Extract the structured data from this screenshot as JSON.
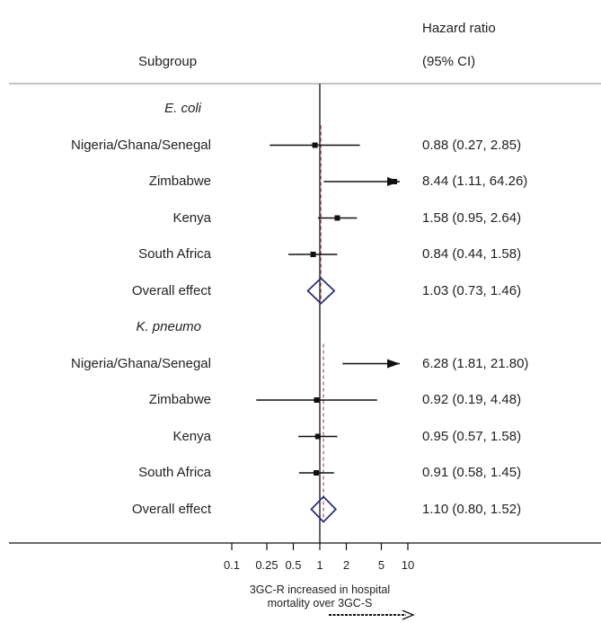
{
  "header": {
    "subgroup": "Subgroup",
    "hazard_ratio": "Hazard ratio",
    "ci": "(95% CI)"
  },
  "footer": {
    "direction_line1": "3GC-R increased in hospital",
    "direction_line2": "mortality over 3GC-S"
  },
  "colors": {
    "diamond": "#2b2f7a",
    "reference_line": "#a03040",
    "ci_line": "#111111"
  },
  "chart_data": {
    "type": "forest",
    "xscale": "log",
    "xlim": [
      0.1,
      10
    ],
    "xticks": [
      "0.1",
      "0.25",
      "0.5",
      "1",
      "2",
      "5",
      "10"
    ],
    "reference_line": 1,
    "rows": [
      {
        "kind": "group",
        "label": "E. coli"
      },
      {
        "kind": "study",
        "label": "Nigeria/Ghana/Senegal",
        "hr": 0.88,
        "lo": 0.27,
        "hi": 2.85,
        "text": "0.88 (0.27, 2.85)"
      },
      {
        "kind": "study",
        "label": "Zimbabwe",
        "hr": 8.44,
        "lo": 1.11,
        "hi": 64.26,
        "text": "8.44 (1.11, 64.26)"
      },
      {
        "kind": "study",
        "label": "Kenya",
        "hr": 1.58,
        "lo": 0.95,
        "hi": 2.64,
        "text": "1.58 (0.95, 2.64)"
      },
      {
        "kind": "study",
        "label": "South Africa",
        "hr": 0.84,
        "lo": 0.44,
        "hi": 1.58,
        "text": "0.84 (0.44, 1.58)"
      },
      {
        "kind": "overall",
        "label": "Overall effect",
        "hr": 1.03,
        "lo": 0.73,
        "hi": 1.46,
        "text": "1.03 (0.73, 1.46)"
      },
      {
        "kind": "group",
        "label": "K. pneumo"
      },
      {
        "kind": "study",
        "label": "Nigeria/Ghana/Senegal",
        "hr": 6.28,
        "lo": 1.81,
        "hi": 21.8,
        "text": "6.28 (1.81, 21.80)"
      },
      {
        "kind": "study",
        "label": "Zimbabwe",
        "hr": 0.92,
        "lo": 0.19,
        "hi": 4.48,
        "text": "0.92 (0.19, 4.48)"
      },
      {
        "kind": "study",
        "label": "Kenya",
        "hr": 0.95,
        "lo": 0.57,
        "hi": 1.58,
        "text": "0.95 (0.57, 1.58)"
      },
      {
        "kind": "study",
        "label": "South Africa",
        "hr": 0.91,
        "lo": 0.58,
        "hi": 1.45,
        "text": "0.91 (0.58, 1.45)"
      },
      {
        "kind": "overall",
        "label": "Overall effect",
        "hr": 1.1,
        "lo": 0.8,
        "hi": 1.52,
        "text": "1.10 (0.80, 1.52)"
      }
    ]
  }
}
